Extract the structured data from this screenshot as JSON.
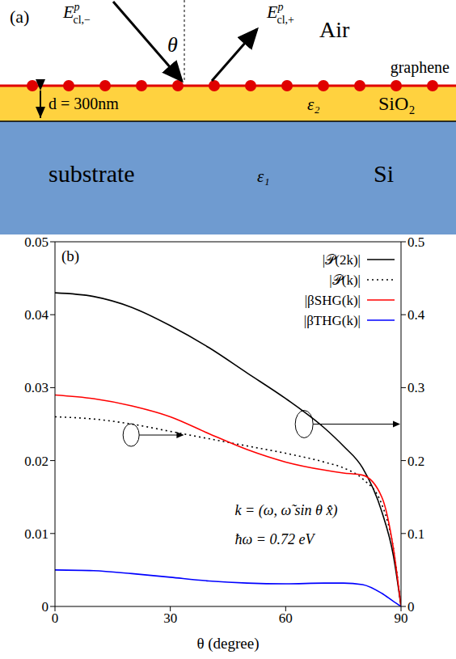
{
  "diagram": {
    "panel_label": "(a)",
    "incident_label": {
      "base": "E",
      "sup": "p",
      "sub": "cl,−"
    },
    "reflected_label": {
      "base": "E",
      "sup": "p",
      "sub": "cl,+"
    },
    "angle_label": "θ",
    "medium_top": "Air",
    "layer_label": "graphene",
    "thickness_label": "d = 300nm",
    "layer_eps": "ε₂",
    "layer_material": "SiO₂",
    "substrate_label": "substrate",
    "substrate_eps": "ε₁",
    "substrate_material": "Si"
  },
  "chart_data": {
    "type": "line",
    "panel_label": "(b)",
    "x_label": "θ (degree)",
    "x": [
      0,
      10,
      20,
      30,
      40,
      50,
      60,
      70,
      75,
      80,
      85,
      88,
      90
    ],
    "xlim": [
      0,
      90
    ],
    "xticks": [
      0,
      30,
      60,
      90
    ],
    "ylim": [
      0,
      0.05
    ],
    "yticks": [
      0,
      0.01,
      0.02,
      0.03,
      0.04,
      0.05
    ],
    "y2lim": [
      0,
      0.5
    ],
    "y2ticks": [
      0,
      0.1,
      0.2,
      0.3,
      0.4,
      0.5
    ],
    "legend": "upper right",
    "annotations": [
      "k = (ω, ω̃ sin θ x̂)",
      "ħω = 0.72 eV"
    ],
    "series": [
      {
        "name": "|𝒫(2k)|",
        "color": "#000000",
        "line_style": "solid",
        "axis": "y2",
        "values": [
          0.43,
          0.425,
          0.41,
          0.385,
          0.355,
          0.32,
          0.285,
          0.245,
          0.22,
          0.19,
          0.13,
          0.07,
          0
        ]
      },
      {
        "name": "|𝒫(k)|",
        "color": "#000000",
        "line_style": "dotted",
        "axis": "y2",
        "values": [
          0.26,
          0.257,
          0.25,
          0.24,
          0.23,
          0.22,
          0.21,
          0.198,
          0.19,
          0.175,
          0.14,
          0.08,
          0
        ]
      },
      {
        "name": "|βSHG(k)|",
        "color": "#ff0000",
        "line_style": "solid",
        "axis": "y",
        "values": [
          0.029,
          0.0285,
          0.0275,
          0.026,
          0.0237,
          0.0215,
          0.0198,
          0.0187,
          0.0183,
          0.018,
          0.015,
          0.008,
          0
        ]
      },
      {
        "name": "|βTHG(k)|",
        "color": "#0000ff",
        "line_style": "solid",
        "axis": "y",
        "values": [
          0.005,
          0.0049,
          0.0045,
          0.004,
          0.0035,
          0.0032,
          0.0031,
          0.0032,
          0.0032,
          0.003,
          0.0018,
          0.0007,
          0
        ]
      }
    ]
  }
}
